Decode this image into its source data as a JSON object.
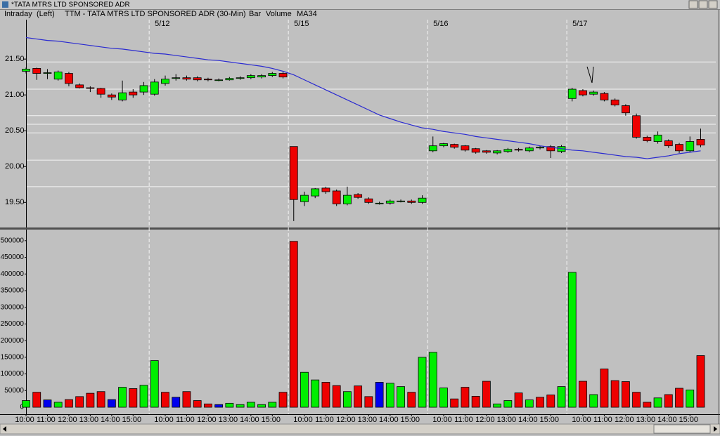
{
  "window": {
    "title": "*TATA MTRS LTD SPONSORED ADR"
  },
  "header": {
    "mode": "Intraday",
    "side": "(Left)",
    "symbol": "TTM - TATA MTRS LTD SPONSORED ADR (30-Min)",
    "style": "Bar"
  },
  "chart_data": [
    {
      "type": "candlestick",
      "dates": [
        null,
        null,
        null,
        null,
        null,
        null,
        null,
        null,
        null,
        null,
        null,
        null,
        "5/12",
        null,
        null,
        null,
        null,
        null,
        null,
        null,
        null,
        null,
        null,
        null,
        null,
        "5/15",
        null,
        null,
        null,
        null,
        null,
        null,
        null,
        null,
        null,
        null,
        null,
        null,
        "5/16",
        null,
        null,
        null,
        null,
        null,
        null,
        null,
        null,
        null,
        null,
        null,
        null,
        "5/17",
        null,
        null,
        null,
        null,
        null,
        null,
        null,
        null,
        null,
        null,
        null,
        null
      ],
      "open": [
        21.33,
        21.37,
        21.31,
        21.22,
        21.3,
        21.14,
        21.1,
        21.09,
        21.0,
        20.93,
        21.04,
        21.04,
        21.01,
        21.16,
        21.23,
        21.24,
        21.24,
        21.22,
        21.21,
        21.21,
        21.23,
        21.24,
        21.25,
        21.27,
        21.3,
        20.28,
        19.51,
        19.59,
        19.7,
        19.66,
        19.48,
        19.61,
        19.55,
        19.49,
        19.49,
        19.52,
        19.52,
        19.5,
        20.22,
        20.29,
        20.31,
        20.29,
        20.25,
        20.22,
        20.19,
        20.21,
        20.24,
        20.22,
        20.26,
        20.28,
        20.21,
        20.95,
        21.06,
        21.01,
        21.02,
        20.93,
        20.85,
        20.71,
        20.41,
        20.35,
        20.36,
        20.31,
        20.22,
        20.38
      ],
      "high": [
        21.38,
        21.38,
        21.36,
        21.34,
        21.32,
        21.16,
        21.12,
        21.1,
        21.02,
        21.2,
        21.08,
        21.18,
        21.22,
        21.27,
        21.29,
        21.27,
        21.26,
        21.24,
        21.23,
        21.25,
        21.26,
        21.29,
        21.29,
        21.32,
        21.32,
        20.28,
        19.65,
        19.7,
        19.72,
        19.68,
        19.72,
        19.63,
        19.57,
        19.51,
        19.54,
        19.54,
        19.54,
        19.6,
        20.42,
        20.33,
        20.32,
        20.3,
        20.26,
        20.23,
        20.23,
        20.26,
        20.26,
        20.28,
        20.29,
        20.3,
        20.3,
        21.1,
        21.08,
        21.06,
        21.04,
        20.95,
        20.87,
        20.74,
        20.43,
        20.49,
        20.38,
        20.33,
        20.42,
        20.53
      ],
      "low": [
        21.3,
        21.21,
        21.22,
        21.2,
        21.12,
        21.09,
        21.04,
        20.96,
        20.93,
        20.91,
        20.96,
        21.0,
        20.99,
        21.13,
        21.2,
        21.2,
        21.19,
        21.19,
        21.19,
        21.2,
        21.21,
        21.22,
        21.23,
        21.25,
        21.23,
        19.24,
        19.45,
        19.56,
        19.62,
        19.45,
        19.46,
        19.55,
        19.48,
        19.47,
        19.47,
        19.5,
        19.48,
        19.48,
        20.2,
        20.27,
        20.25,
        20.21,
        20.18,
        20.18,
        20.17,
        20.19,
        20.21,
        20.2,
        20.24,
        20.12,
        20.19,
        20.91,
        20.98,
        20.99,
        20.91,
        20.84,
        20.71,
        20.39,
        20.34,
        20.32,
        20.26,
        20.19,
        20.2,
        20.27
      ],
      "close": [
        21.36,
        21.3,
        21.31,
        21.32,
        21.16,
        21.1,
        21.09,
        21.01,
        20.97,
        21.03,
        21.0,
        21.13,
        21.18,
        21.22,
        21.24,
        21.22,
        21.21,
        21.21,
        21.21,
        21.23,
        21.24,
        21.27,
        21.27,
        21.3,
        21.25,
        19.54,
        19.6,
        19.69,
        19.65,
        19.48,
        19.6,
        19.57,
        19.5,
        19.49,
        19.52,
        19.52,
        19.5,
        19.56,
        20.29,
        20.32,
        20.27,
        20.23,
        20.2,
        20.2,
        20.22,
        20.24,
        20.23,
        20.26,
        20.27,
        20.22,
        20.28,
        21.08,
        21.0,
        21.04,
        20.93,
        20.86,
        20.75,
        20.41,
        20.36,
        20.44,
        20.29,
        20.22,
        20.35,
        20.3
      ],
      "up_color": "#00ee00",
      "down_color": "#ee0000",
      "series": [
        {
          "name": "MA34",
          "color": "#2a2ad0",
          "values": [
            21.8,
            21.78,
            21.76,
            21.75,
            21.73,
            21.71,
            21.69,
            21.67,
            21.65,
            21.64,
            21.62,
            21.6,
            21.58,
            21.57,
            21.55,
            21.53,
            21.51,
            21.49,
            21.48,
            21.46,
            21.44,
            21.42,
            21.4,
            21.37,
            21.33,
            21.28,
            21.21,
            21.14,
            21.07,
            21.0,
            20.93,
            20.86,
            20.79,
            20.72,
            20.67,
            20.62,
            20.58,
            20.54,
            20.52,
            20.49,
            20.47,
            20.45,
            20.42,
            20.4,
            20.38,
            20.36,
            20.34,
            20.32,
            20.29,
            20.27,
            20.25,
            20.23,
            20.22,
            20.2,
            20.18,
            20.16,
            20.14,
            20.13,
            20.11,
            20.13,
            20.15,
            20.18,
            20.2,
            20.22
          ]
        }
      ],
      "hlines": [
        21.46,
        21.08,
        20.71,
        20.59,
        20.47,
        20.09,
        19.72
      ],
      "ylim": [
        19.17,
        22.05
      ],
      "yticks": [
        {
          "value": 19.5,
          "label": "19.50"
        },
        {
          "value": 20,
          "label": "20.00"
        },
        {
          "value": 20.5,
          "label": "20.50"
        },
        {
          "value": 21,
          "label": "21.00"
        },
        {
          "value": 21.5,
          "label": "21.50"
        }
      ]
    },
    {
      "type": "bar",
      "categories": [
        "10:00",
        null,
        "11:00",
        null,
        "12:00",
        null,
        "13:00",
        null,
        "14:00",
        null,
        "15:00",
        null,
        null,
        "10:00",
        null,
        "11:00",
        null,
        "12:00",
        null,
        "13:00",
        null,
        "14:00",
        null,
        "15:00",
        null,
        null,
        "10:00",
        null,
        "11:00",
        null,
        "12:00",
        null,
        "13:00",
        null,
        "14:00",
        null,
        "15:00",
        null,
        null,
        "10:00",
        null,
        "11:00",
        null,
        "12:00",
        null,
        "13:00",
        null,
        "14:00",
        null,
        "15:00",
        null,
        null,
        "10:00",
        null,
        "11:00",
        null,
        "12:00",
        null,
        "13:00",
        null,
        "14:00",
        null,
        "15:00",
        null
      ],
      "series": [
        {
          "name": "Volume",
          "color": "#2a2ad0",
          "values": [
            20000,
            45000,
            22000,
            15000,
            23000,
            32000,
            42000,
            47000,
            23000,
            60000,
            56000,
            66000,
            140000,
            45000,
            30000,
            47000,
            20000,
            10000,
            8000,
            12000,
            8000,
            15000,
            8000,
            15000,
            45000,
            498000,
            105000,
            82000,
            75000,
            65000,
            47000,
            64000,
            32000,
            75000,
            72000,
            62000,
            45000,
            150000,
            165000,
            58000,
            25000,
            60000,
            33000,
            78000,
            10000,
            20000,
            43000,
            22000,
            30000,
            37000,
            62000,
            405000,
            78000,
            38000,
            115000,
            80000,
            77000,
            45000,
            15000,
            28000,
            38000,
            57000,
            52000,
            155000
          ]
        }
      ],
      "bar_colors": [
        "up",
        "down",
        "flat",
        "up",
        "down",
        "down",
        "down",
        "down",
        "flat",
        "up",
        "down",
        "up",
        "up",
        "down",
        "flat",
        "down",
        "down",
        "down",
        "flat",
        "up",
        "up",
        "up",
        "up",
        "up",
        "down",
        "down",
        "up",
        "up",
        "down",
        "down",
        "up",
        "down",
        "down",
        "flat",
        "up",
        "up",
        "down",
        "up",
        "up",
        "up",
        "down",
        "down",
        "down",
        "down",
        "up",
        "up",
        "down",
        "up",
        "down",
        "down",
        "up",
        "up",
        "down",
        "up",
        "down",
        "down",
        "down",
        "down",
        "down",
        "up",
        "down",
        "down",
        "up",
        "down"
      ],
      "palette": {
        "up": "#00ee00",
        "down": "#ee0000",
        "flat": "#0000ee"
      },
      "ylim": [
        -21000,
        527000
      ],
      "yticks": [
        0,
        50000,
        100000,
        150000,
        200000,
        250000,
        300000,
        350000,
        400000,
        450000,
        500000
      ]
    }
  ]
}
